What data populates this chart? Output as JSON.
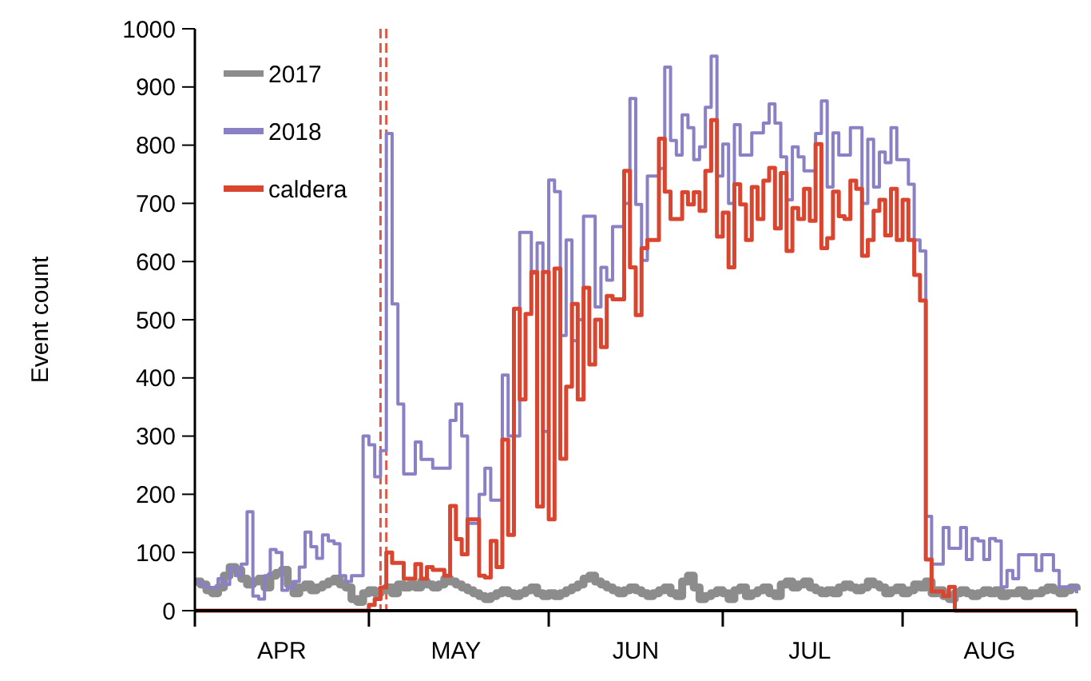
{
  "chart_data": {
    "type": "step",
    "ylabel": "Event count",
    "legend": "top left",
    "ylim": [
      0,
      1000
    ],
    "yticks": [
      0,
      100,
      200,
      300,
      400,
      500,
      600,
      700,
      800,
      900,
      1000
    ],
    "xlim": [
      "2018-04-01",
      "2018-08-31"
    ],
    "xticks": [
      {
        "value": "2018-04-01",
        "label": null
      },
      {
        "value": "2018-04-16",
        "label": "APR"
      },
      {
        "value": "2018-05-01",
        "label": null
      },
      {
        "value": "2018-05-16",
        "label": "MAY"
      },
      {
        "value": "2018-06-01",
        "label": null
      },
      {
        "value": "2018-06-16",
        "label": "JUN"
      },
      {
        "value": "2018-07-01",
        "label": null
      },
      {
        "value": "2018-07-16",
        "label": "JUL"
      },
      {
        "value": "2018-08-01",
        "label": null
      },
      {
        "value": "2018-08-16",
        "label": "AUG"
      },
      {
        "value": "2018-08-31",
        "label": null
      }
    ],
    "x": [
      "2018-04-01",
      "2018-04-02",
      "2018-04-03",
      "2018-04-04",
      "2018-04-05",
      "2018-04-06",
      "2018-04-07",
      "2018-04-08",
      "2018-04-09",
      "2018-04-10",
      "2018-04-11",
      "2018-04-12",
      "2018-04-13",
      "2018-04-14",
      "2018-04-15",
      "2018-04-16",
      "2018-04-17",
      "2018-04-18",
      "2018-04-19",
      "2018-04-20",
      "2018-04-21",
      "2018-04-22",
      "2018-04-23",
      "2018-04-24",
      "2018-04-25",
      "2018-04-26",
      "2018-04-27",
      "2018-04-28",
      "2018-04-29",
      "2018-04-30",
      "2018-05-01",
      "2018-05-02",
      "2018-05-03",
      "2018-05-04",
      "2018-05-05",
      "2018-05-06",
      "2018-05-07",
      "2018-05-08",
      "2018-05-09",
      "2018-05-10",
      "2018-05-11",
      "2018-05-12",
      "2018-05-13",
      "2018-05-14",
      "2018-05-15",
      "2018-05-16",
      "2018-05-17",
      "2018-05-18",
      "2018-05-19",
      "2018-05-20",
      "2018-05-21",
      "2018-05-22",
      "2018-05-23",
      "2018-05-24",
      "2018-05-25",
      "2018-05-26",
      "2018-05-27",
      "2018-05-28",
      "2018-05-29",
      "2018-05-30",
      "2018-05-31",
      "2018-06-01",
      "2018-06-02",
      "2018-06-03",
      "2018-06-04",
      "2018-06-05",
      "2018-06-06",
      "2018-06-07",
      "2018-06-08",
      "2018-06-09",
      "2018-06-10",
      "2018-06-11",
      "2018-06-12",
      "2018-06-13",
      "2018-06-14",
      "2018-06-15",
      "2018-06-16",
      "2018-06-17",
      "2018-06-18",
      "2018-06-19",
      "2018-06-20",
      "2018-06-21",
      "2018-06-22",
      "2018-06-23",
      "2018-06-24",
      "2018-06-25",
      "2018-06-26",
      "2018-06-27",
      "2018-06-28",
      "2018-06-29",
      "2018-06-30",
      "2018-07-01",
      "2018-07-02",
      "2018-07-03",
      "2018-07-04",
      "2018-07-05",
      "2018-07-06",
      "2018-07-07",
      "2018-07-08",
      "2018-07-09",
      "2018-07-10",
      "2018-07-11",
      "2018-07-12",
      "2018-07-13",
      "2018-07-14",
      "2018-07-15",
      "2018-07-16",
      "2018-07-17",
      "2018-07-18",
      "2018-07-19",
      "2018-07-20",
      "2018-07-21",
      "2018-07-22",
      "2018-07-23",
      "2018-07-24",
      "2018-07-25",
      "2018-07-26",
      "2018-07-27",
      "2018-07-28",
      "2018-07-29",
      "2018-07-30",
      "2018-07-31",
      "2018-08-01",
      "2018-08-02",
      "2018-08-03",
      "2018-08-04",
      "2018-08-05",
      "2018-08-06",
      "2018-08-07",
      "2018-08-08",
      "2018-08-09",
      "2018-08-10",
      "2018-08-11",
      "2018-08-12",
      "2018-08-13",
      "2018-08-14",
      "2018-08-15",
      "2018-08-16",
      "2018-08-17",
      "2018-08-18",
      "2018-08-19",
      "2018-08-20",
      "2018-08-21",
      "2018-08-22",
      "2018-08-23",
      "2018-08-24",
      "2018-08-25",
      "2018-08-26",
      "2018-08-27",
      "2018-08-28",
      "2018-08-29",
      "2018-08-30",
      "2018-08-31"
    ],
    "series": [
      {
        "name": "2017",
        "color": "#8c8c8c",
        "values": [
          50,
          45,
          35,
          30,
          40,
          60,
          75,
          70,
          55,
          45,
          50,
          55,
          40,
          60,
          65,
          70,
          45,
          30,
          40,
          45,
          35,
          40,
          45,
          50,
          55,
          45,
          40,
          20,
          15,
          30,
          35,
          30,
          35,
          40,
          30,
          45,
          40,
          45,
          40,
          50,
          45,
          40,
          45,
          55,
          50,
          45,
          40,
          35,
          30,
          25,
          20,
          25,
          30,
          35,
          30,
          25,
          30,
          35,
          40,
          30,
          25,
          30,
          25,
          30,
          35,
          40,
          45,
          55,
          60,
          50,
          45,
          40,
          35,
          30,
          35,
          40,
          35,
          30,
          25,
          30,
          35,
          40,
          30,
          25,
          50,
          60,
          40,
          20,
          25,
          30,
          35,
          30,
          20,
          35,
          40,
          25,
          30,
          35,
          40,
          30,
          25,
          45,
          50,
          40,
          45,
          50,
          40,
          35,
          30,
          35,
          30,
          40,
          45,
          40,
          35,
          40,
          50,
          45,
          40,
          30,
          35,
          40,
          30,
          35,
          45,
          40,
          50,
          30,
          35,
          25,
          20,
          30,
          35,
          30,
          25,
          30,
          35,
          30,
          35,
          25,
          30,
          30,
          35,
          25,
          30,
          30,
          35,
          40,
          35,
          30,
          35,
          40,
          35
        ]
      },
      {
        "name": "2018",
        "color": "#8a80c6",
        "values": [
          50,
          45,
          40,
          40,
          55,
          45,
          75,
          60,
          80,
          170,
          25,
          20,
          60,
          105,
          100,
          35,
          40,
          50,
          75,
          135,
          110,
          90,
          130,
          120,
          115,
          60,
          50,
          60,
          60,
          300,
          285,
          230,
          275,
          820,
          527,
          355,
          235,
          235,
          290,
          260,
          260,
          245,
          245,
          245,
          327,
          355,
          300,
          150,
          150,
          200,
          245,
          190,
          190,
          405,
          300,
          300,
          650,
          650,
          580,
          632,
          308,
          740,
          720,
          473,
          637,
          464,
          500,
          678,
          678,
          522,
          590,
          568,
          660,
          660,
          700,
          880,
          698,
          602,
          747,
          747,
          760,
          934,
          808,
          783,
          852,
          830,
          775,
          797,
          865,
          953,
          747,
          802,
          700,
          835,
          783,
          783,
          821,
          821,
          838,
          871,
          838,
          780,
          706,
          797,
          780,
          756,
          756,
          820,
          876,
          728,
          821,
          783,
          783,
          830,
          830,
          700,
          810,
          728,
          788,
          770,
          830,
          775,
          775,
          733,
          637,
          618,
          162,
          80,
          80,
          143,
          107,
          107,
          143,
          88,
          124,
          120,
          88,
          124,
          120,
          41,
          69,
          55,
          96,
          96,
          96,
          69,
          96,
          96,
          69,
          41,
          41,
          41,
          30
        ]
      },
      {
        "name": "caldera",
        "color": "#d9452f",
        "values": [
          0,
          0,
          0,
          0,
          0,
          0,
          0,
          0,
          0,
          0,
          0,
          0,
          0,
          0,
          0,
          0,
          0,
          0,
          0,
          0,
          0,
          0,
          0,
          0,
          0,
          0,
          0,
          0,
          0,
          0,
          10,
          20,
          40,
          100,
          82,
          82,
          55,
          55,
          80,
          55,
          75,
          70,
          70,
          60,
          180,
          123,
          97,
          157,
          157,
          60,
          57,
          120,
          75,
          294,
          130,
          519,
          363,
          510,
          582,
          179,
          582,
          157,
          588,
          261,
          385,
          527,
          363,
          555,
          423,
          500,
          453,
          541,
          535,
          535,
          756,
          590,
          508,
          623,
          637,
          637,
          811,
          720,
          673,
          673,
          719,
          698,
          719,
          687,
          756,
          843,
          643,
          684,
          590,
          733,
          698,
          637,
          728,
          673,
          739,
          761,
          657,
          752,
          618,
          692,
          673,
          725,
          670,
          802,
          623,
          640,
          720,
          678,
          673,
          739,
          725,
          610,
          637,
          687,
          706,
          645,
          725,
          637,
          706,
          637,
          577,
          533,
          88,
          33,
          33,
          25,
          41,
          0,
          0,
          0,
          0,
          0,
          0,
          0,
          0,
          0,
          0,
          0,
          0,
          0,
          0,
          0,
          0,
          0,
          0,
          0,
          0,
          0,
          0
        ]
      }
    ],
    "ref_lines": [
      {
        "axis": "x",
        "value": "2018-05-03",
        "color": "#e0584a",
        "line_style": "dashed"
      },
      {
        "axis": "x",
        "value": "2018-05-04",
        "color": "#e0584a",
        "line_style": "dashed"
      }
    ]
  }
}
